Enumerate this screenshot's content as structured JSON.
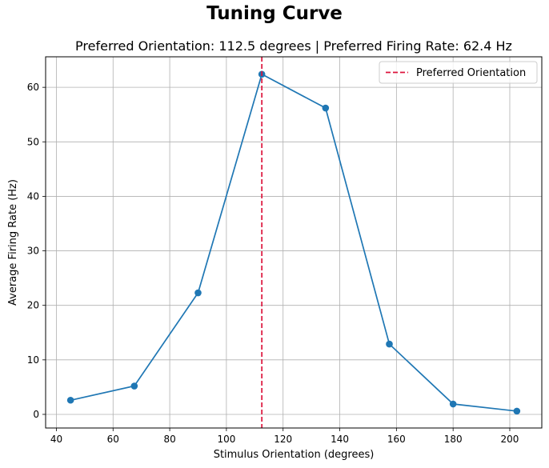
{
  "figure_title": "Tuning Curve",
  "chart_data": {
    "type": "line",
    "title": "Preferred Orientation: 112.5 degrees | Preferred Firing Rate: 62.4 Hz",
    "xlabel": "Stimulus Orientation (degrees)",
    "ylabel": "Average Firing Rate (Hz)",
    "xlim": [
      36.2,
      211.3
    ],
    "ylim": [
      -2.5,
      65.6
    ],
    "xticks": [
      40,
      60,
      80,
      100,
      120,
      140,
      160,
      180,
      200
    ],
    "yticks": [
      0,
      10,
      20,
      30,
      40,
      50,
      60
    ],
    "grid": true,
    "series": [
      {
        "color": "#1f77b4",
        "marker": "circle",
        "x": [
          45,
          67.5,
          90,
          112.5,
          135,
          157.5,
          180,
          202.5
        ],
        "y": [
          2.6,
          5.2,
          22.3,
          62.4,
          56.2,
          12.9,
          1.9,
          0.6
        ]
      }
    ],
    "reference_line": {
      "orientation": "vertical",
      "x": 112.5,
      "color": "#dc143c",
      "style": "dashed",
      "label": "Preferred Orientation"
    },
    "legend": {
      "position": "top-right",
      "entries": [
        "Preferred Orientation"
      ]
    }
  }
}
